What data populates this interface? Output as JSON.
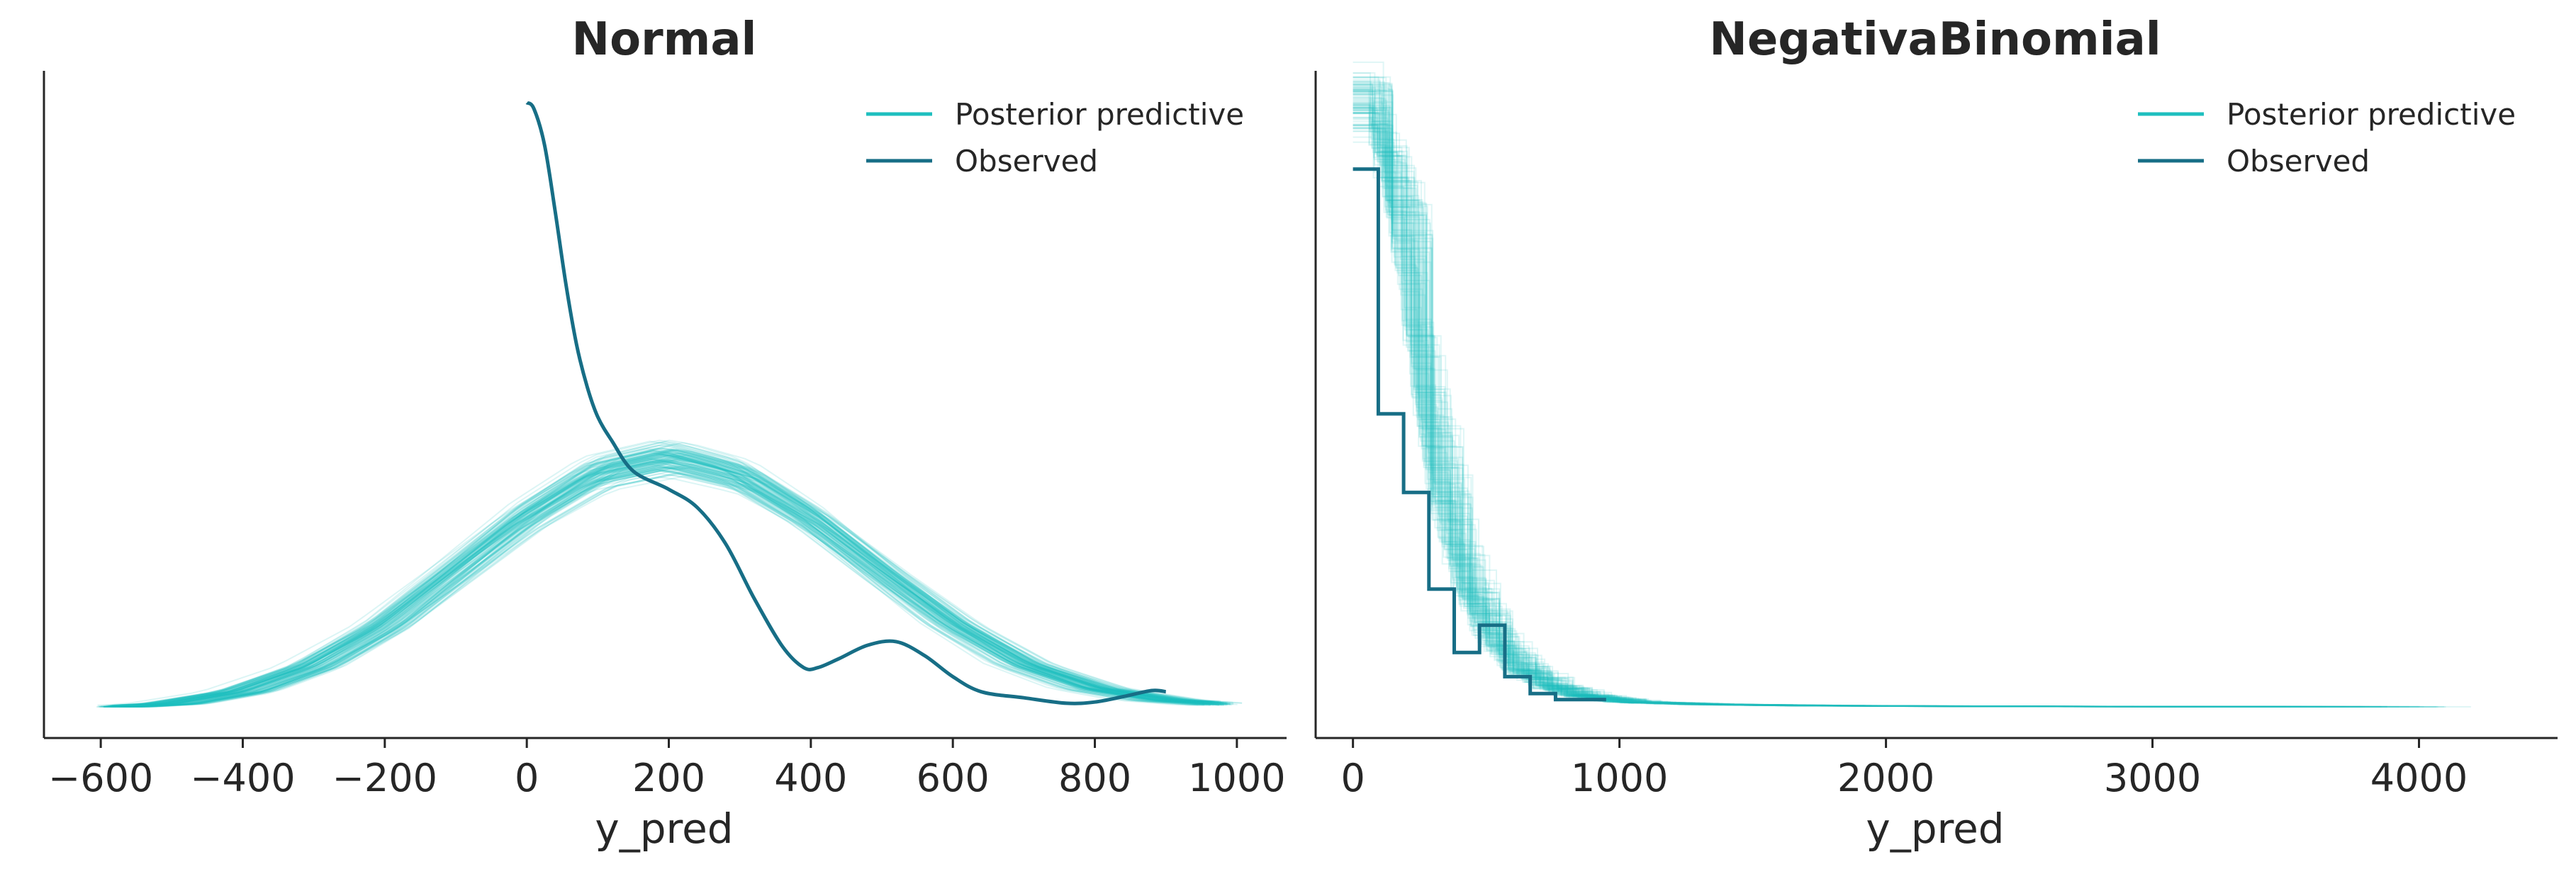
{
  "figure": {
    "colors": {
      "posterior_predictive": "#1fbfbf",
      "observed": "#176e86",
      "axis": "#262626"
    }
  },
  "chart_data": [
    {
      "type": "line",
      "title": "Normal",
      "xlabel": "y_pred",
      "ylabel": "",
      "xlim": [
        -680,
        1070
      ],
      "ylim": [
        0,
        1
      ],
      "x_ticks": [
        -600,
        -400,
        -200,
        0,
        200,
        400,
        600,
        800,
        1000
      ],
      "x_tick_labels": [
        "−600",
        "−400",
        "−200",
        "0",
        "200",
        "400",
        "600",
        "800",
        "1000"
      ],
      "y_ticks_visible": false,
      "grid": false,
      "legend": {
        "position": "top-right",
        "entries": [
          "Posterior predictive",
          "Observed"
        ]
      },
      "series": [
        {
          "name": "Posterior predictive",
          "kind": "ensemble",
          "draws": 120,
          "x": [
            -580,
            -500,
            -400,
            -300,
            -200,
            -100,
            0,
            100,
            200,
            300,
            400,
            500,
            600,
            700,
            800,
            900,
            1000
          ],
          "y": [
            0.0,
            0.005,
            0.025,
            0.067,
            0.134,
            0.225,
            0.316,
            0.388,
            0.414,
            0.384,
            0.313,
            0.223,
            0.137,
            0.07,
            0.03,
            0.011,
            0.003
          ]
        },
        {
          "name": "Observed",
          "kind": "kde",
          "x": [
            0,
            10,
            25,
            40,
            55,
            70,
            85,
            100,
            120,
            150,
            200,
            240,
            280,
            320,
            360,
            390,
            410,
            440,
            480,
            520,
            560,
            600,
            640,
            700,
            760,
            800,
            840,
            880,
            900
          ],
          "y": [
            1.0,
            0.99,
            0.93,
            0.82,
            0.7,
            0.6,
            0.53,
            0.48,
            0.44,
            0.39,
            0.36,
            0.33,
            0.27,
            0.18,
            0.1,
            0.065,
            0.065,
            0.08,
            0.102,
            0.108,
            0.085,
            0.05,
            0.025,
            0.015,
            0.006,
            0.008,
            0.017,
            0.027,
            0.025
          ]
        }
      ]
    },
    {
      "type": "line",
      "title": "NegativaBinomial",
      "xlabel": "y_pred",
      "ylabel": "",
      "xlim": [
        -140,
        4520
      ],
      "ylim": [
        0,
        1
      ],
      "x_ticks": [
        0,
        1000,
        2000,
        3000,
        4000
      ],
      "x_tick_labels": [
        "0",
        "1000",
        "2000",
        "3000",
        "4000"
      ],
      "y_ticks_visible": false,
      "grid": false,
      "legend": {
        "position": "top-right",
        "entries": [
          "Posterior predictive",
          "Observed"
        ]
      },
      "series": [
        {
          "name": "Posterior predictive",
          "kind": "ensemble-step",
          "draws": 100,
          "x": [
            0,
            50,
            100,
            150,
            200,
            250,
            300,
            350,
            400,
            500,
            600,
            700,
            800,
            1000,
            1300,
            1700,
            2200,
            2800,
            3500,
            4230
          ],
          "y": [
            1.0,
            0.97,
            0.9,
            0.78,
            0.62,
            0.47,
            0.35,
            0.26,
            0.19,
            0.105,
            0.06,
            0.035,
            0.02,
            0.008,
            0.004,
            0.002,
            0.001,
            0.0005,
            0.0002,
            0.0
          ]
        },
        {
          "name": "Observed",
          "kind": "step",
          "x": [
            0,
            95,
            190,
            285,
            380,
            475,
            570,
            665,
            760,
            950
          ],
          "y": [
            0.89,
            0.485,
            0.355,
            0.195,
            0.09,
            0.135,
            0.05,
            0.022,
            0.012,
            0.012
          ]
        }
      ]
    }
  ]
}
